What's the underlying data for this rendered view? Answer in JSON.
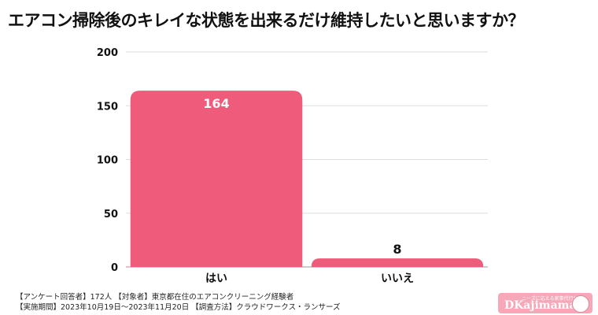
{
  "title": "エアコン掃除後のキレイな状態を出来るだけ維持したいと思いますか？",
  "chart_data": {
    "type": "bar",
    "categories": [
      "はい",
      "いいえ"
    ],
    "values": [
      164,
      8
    ],
    "data_labels": [
      "164",
      "8"
    ],
    "ylim": [
      0,
      200
    ],
    "yticks": [
      0,
      50,
      100,
      150,
      200
    ],
    "grid": true,
    "bar_color": "#ef5b7a"
  },
  "footnotes": [
    "【アンケート回答者】172人 【対象者】東京都在住のエアコンクリーニング経験者",
    "【実施期間】2023年10月19日〜2023年11月20日 【調査方法】クラウドワークス・ランサーズ"
  ],
  "logo": {
    "text": "Kajimama",
    "letter": "D",
    "subtext": "ニーズに応える家事代行サイト"
  }
}
